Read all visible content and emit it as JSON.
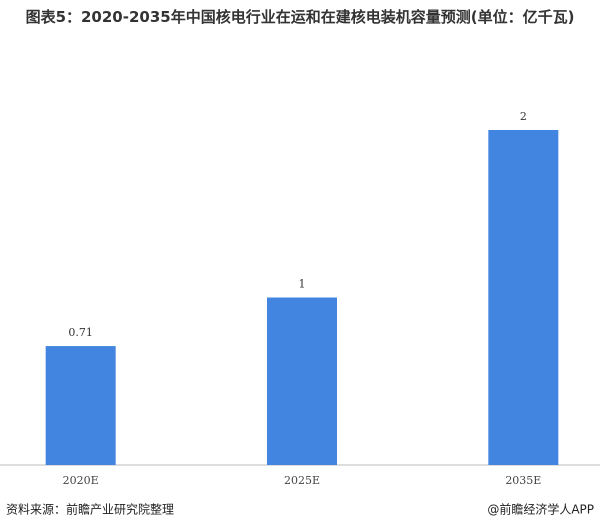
{
  "chart_data": {
    "type": "bar",
    "title": "图表5：2020-2035年中国核电行业在运和在建核电装机容量预测(单位：亿千瓦)",
    "categories": [
      "2020E",
      "2025E",
      "2035E"
    ],
    "values": [
      0.71,
      1,
      2
    ],
    "color": "#4285e0",
    "source": "资料来源：前瞻产业研究院整理",
    "credit": "@前瞻经济学人APP"
  }
}
